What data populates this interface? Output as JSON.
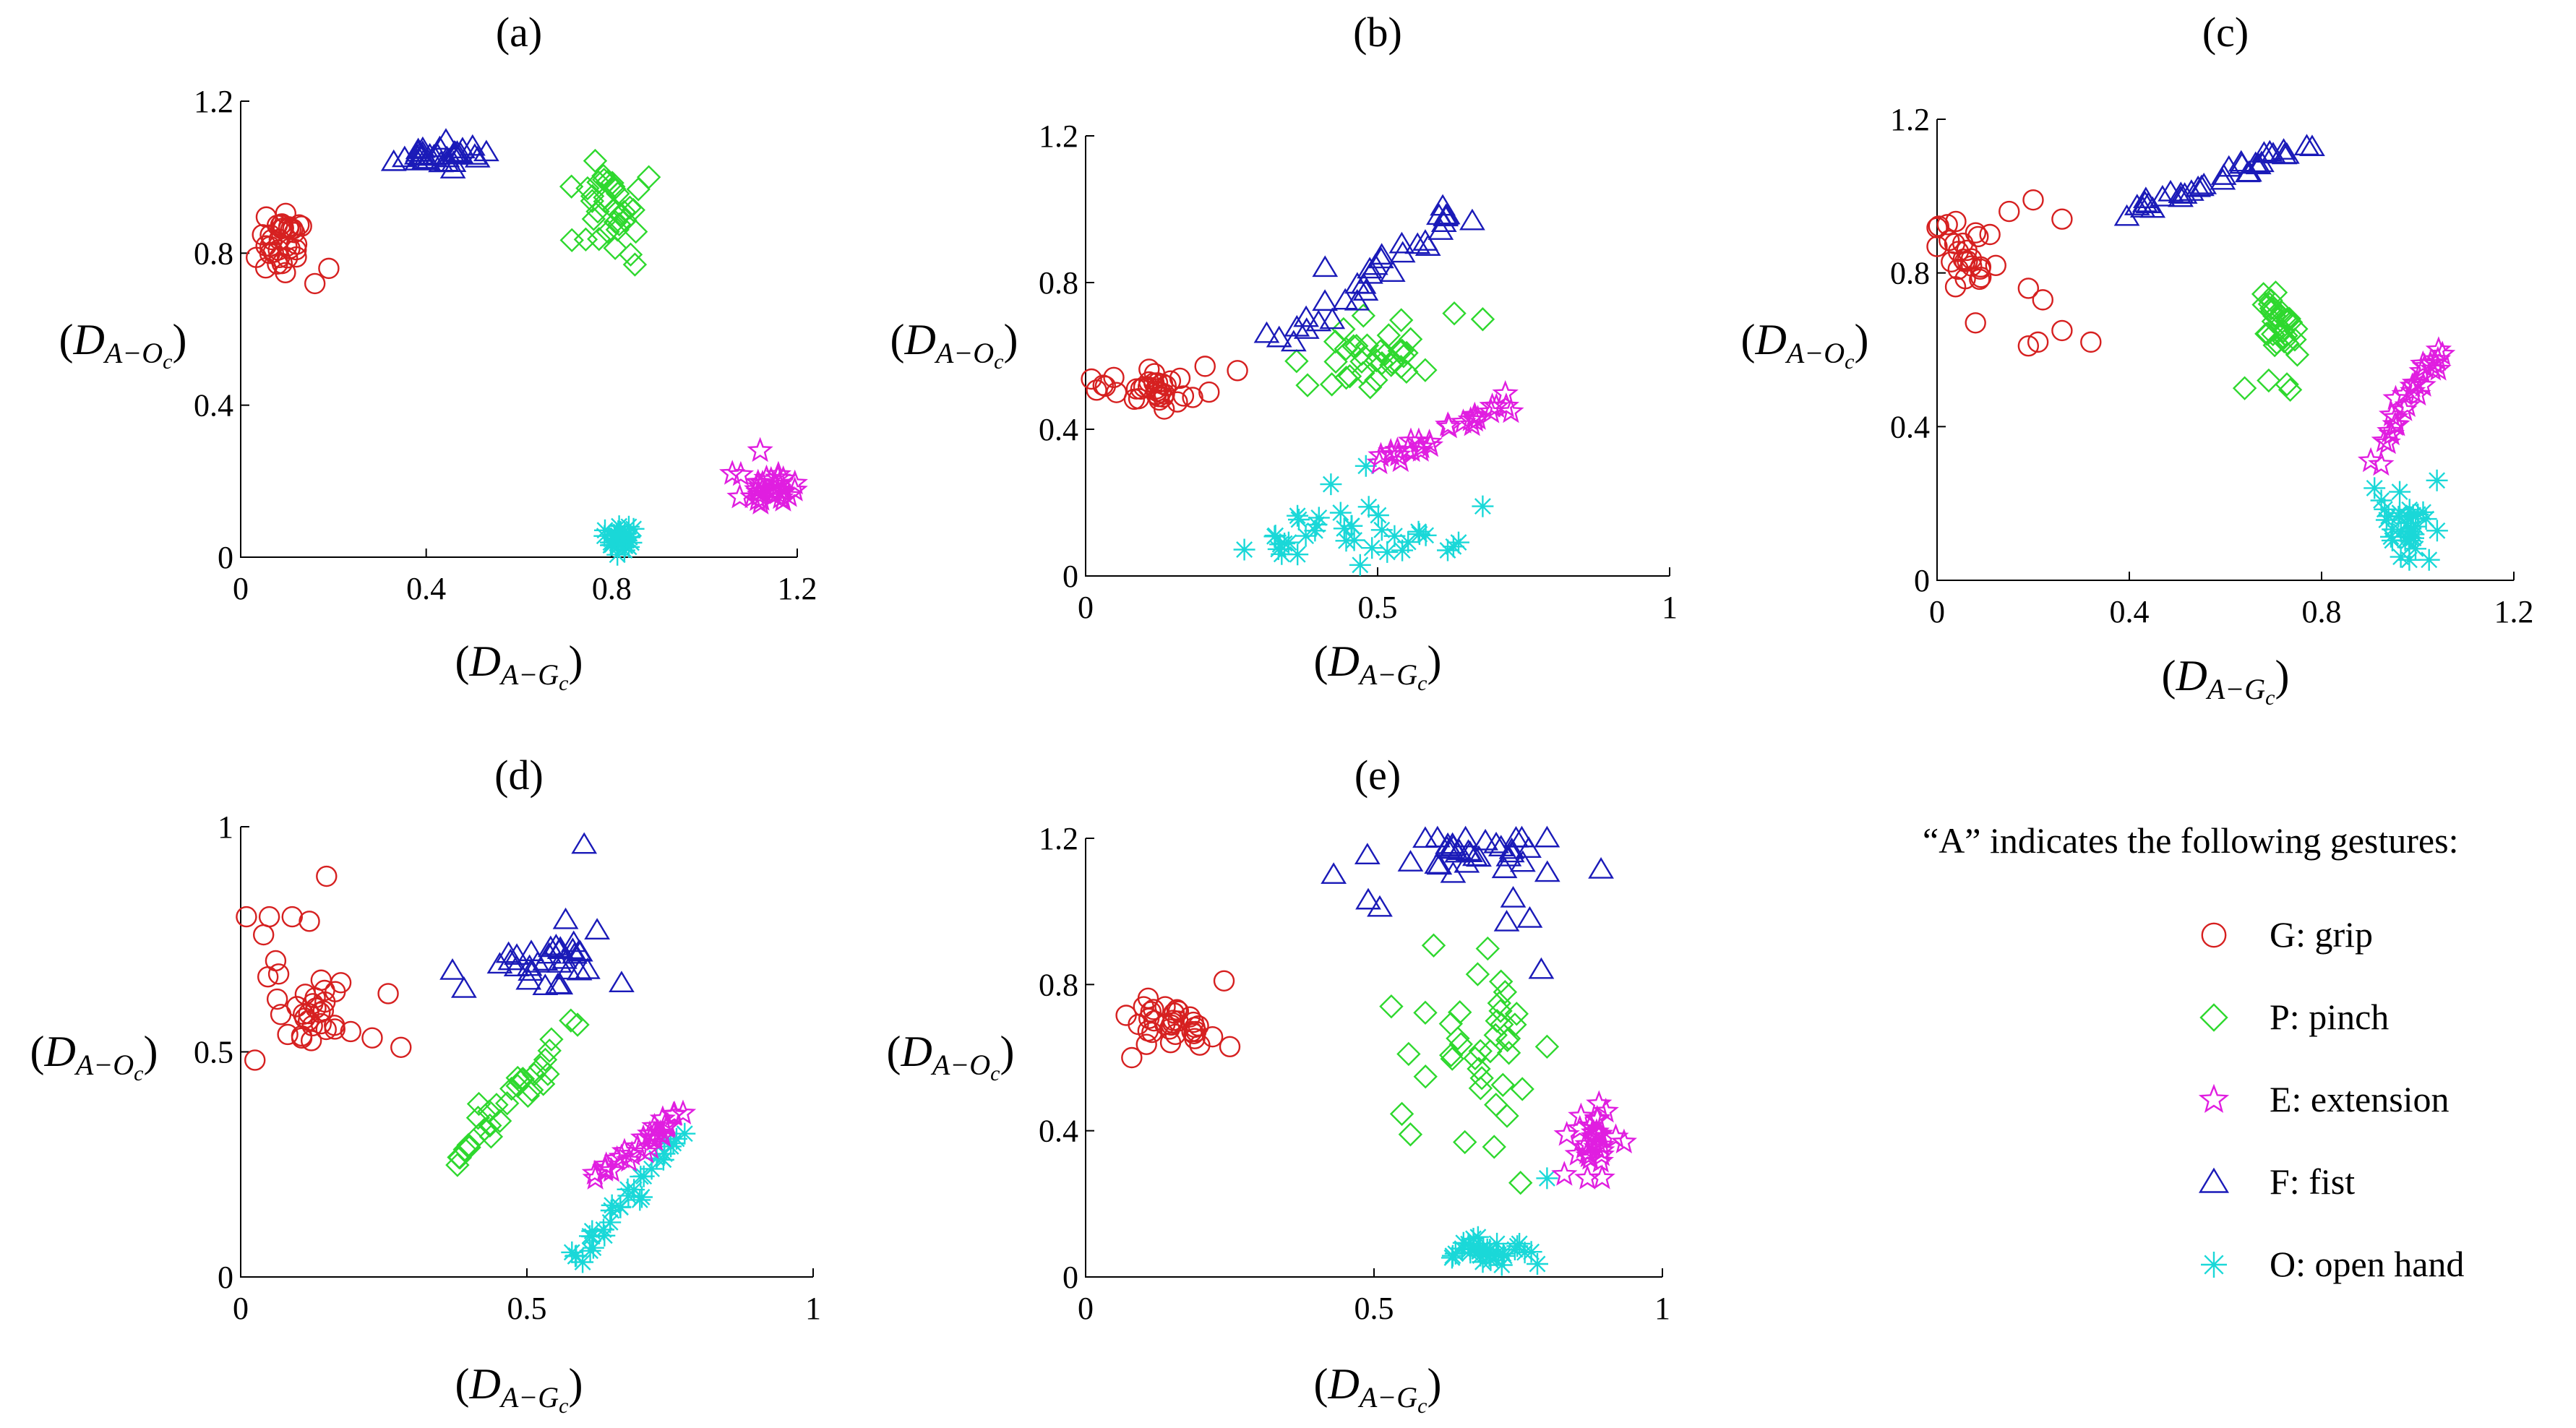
{
  "figure": {
    "legend": {
      "title": "“A” indicates the following gestures:",
      "entries": [
        {
          "key": "G",
          "label": "G: grip",
          "marker": "circle",
          "color": "#d62020"
        },
        {
          "key": "P",
          "label": "P: pinch",
          "marker": "diamond",
          "color": "#2ed82e"
        },
        {
          "key": "E",
          "label": "E: extension",
          "marker": "star",
          "color": "#e01ee0"
        },
        {
          "key": "F",
          "label": "F: fist",
          "marker": "triangle",
          "color": "#1a1ab8"
        },
        {
          "key": "O",
          "label": "O: open hand",
          "marker": "asterisk",
          "color": "#1ad8d8"
        }
      ]
    },
    "axis_text": {
      "open": "(",
      "close": ")",
      "D": "D",
      "sub_y": "A−O",
      "sub_x": "A−G",
      "subsub": "c"
    }
  },
  "chart_data": [
    {
      "type": "scatter",
      "title": "(a)",
      "xlim": [
        0,
        1.2
      ],
      "ylim": [
        0,
        1.2
      ],
      "xticks": [
        0,
        0.4,
        0.8,
        1.2
      ],
      "xtick_labels": [
        "0",
        "0.4",
        "0.8",
        "1.2"
      ],
      "yticks": [
        0,
        0.4,
        0.8,
        1.2
      ],
      "ytick_labels": [
        "0",
        "0.4",
        "0.8",
        "1.2"
      ],
      "series": {
        "G": {
          "cx": 0.09,
          "cy": 0.83,
          "sx": 0.03,
          "sy": 0.035,
          "n": 34,
          "extra": [
            [
              0.16,
              0.72
            ],
            [
              0.19,
              0.76
            ],
            [
              0.12,
              0.79
            ]
          ]
        },
        "P": {
          "cx": 0.78,
          "cy": 0.93,
          "sx": 0.045,
          "sy": 0.06,
          "n": 34,
          "extra": [
            [
              0.88,
              1.0
            ],
            [
              0.85,
              0.77
            ]
          ]
        },
        "E": {
          "cx": 1.14,
          "cy": 0.18,
          "sx": 0.035,
          "sy": 0.03,
          "n": 30,
          "extra": [
            [
              1.12,
              0.28
            ],
            [
              1.06,
              0.22
            ]
          ]
        },
        "F": {
          "cx": 0.42,
          "cy": 1.06,
          "sx": 0.045,
          "sy": 0.014,
          "n": 30,
          "extra": [
            [
              0.33,
              1.04
            ],
            [
              0.5,
              1.08
            ]
          ]
        },
        "O": {
          "cx": 0.82,
          "cy": 0.05,
          "sx": 0.018,
          "sy": 0.02,
          "n": 30,
          "extra": []
        }
      }
    },
    {
      "type": "scatter",
      "title": "(b)",
      "xlim": [
        0,
        1
      ],
      "ylim": [
        0,
        1.2
      ],
      "xticks": [
        0,
        0.5,
        1
      ],
      "xtick_labels": [
        "0",
        "0.5",
        "1"
      ],
      "yticks": [
        0,
        0.4,
        0.8,
        1.2
      ],
      "ytick_labels": [
        "0",
        "0.4",
        "0.8",
        "1.2"
      ],
      "series": {
        "G": {
          "cx": 0.12,
          "cy": 0.52,
          "sx": 0.045,
          "sy": 0.025,
          "n": 34,
          "extra": [
            [
              0.26,
              0.56
            ],
            [
              0.03,
              0.52
            ]
          ]
        },
        "P": {
          "cx": 0.5,
          "cy": 0.6,
          "sx": 0.055,
          "sy": 0.045,
          "n": 34,
          "extra": [
            [
              0.68,
              0.7
            ],
            [
              0.38,
              0.52
            ]
          ]
        },
        "E": {
          "cx": 0.62,
          "cy": 0.39,
          "sx": 0.06,
          "sy": 0.04,
          "n": 30,
          "line": [
            0.51,
            0.31,
            0.73,
            0.48
          ]
        },
        "F": {
          "cx": 0.53,
          "cy": 0.84,
          "sx": 0.06,
          "sy": 0.08,
          "n": 32,
          "line": [
            0.35,
            0.64,
            0.68,
            1.05
          ],
          "extra": [
            [
              0.31,
              0.66
            ],
            [
              0.41,
              0.84
            ]
          ]
        },
        "O": {
          "cx": 0.45,
          "cy": 0.1,
          "sx": 0.09,
          "sy": 0.035,
          "n": 34,
          "extra": [
            [
              0.48,
              0.3
            ],
            [
              0.42,
              0.25
            ],
            [
              0.68,
              0.19
            ],
            [
              0.47,
              0.03
            ],
            [
              0.62,
              0.07
            ]
          ]
        }
      }
    },
    {
      "type": "scatter",
      "title": "(c)",
      "xlim": [
        0,
        1.2
      ],
      "ylim": [
        0,
        1.2
      ],
      "xticks": [
        0,
        0.4,
        0.8,
        1.2
      ],
      "xtick_labels": [
        "0",
        "0.4",
        "0.8",
        "1.2"
      ],
      "yticks": [
        0,
        0.4,
        0.8,
        1.2
      ],
      "ytick_labels": [
        "0",
        "0.4",
        "0.8",
        "1.2"
      ],
      "series": {
        "G": {
          "cx": 0.06,
          "cy": 0.84,
          "sx": 0.035,
          "sy": 0.04,
          "n": 26,
          "extra": [
            [
              0.2,
              0.99
            ],
            [
              0.15,
              0.96
            ],
            [
              0.19,
              0.76
            ],
            [
              0.22,
              0.73
            ],
            [
              0.26,
              0.65
            ],
            [
              0.32,
              0.62
            ],
            [
              0.26,
              0.94
            ],
            [
              0.19,
              0.61
            ],
            [
              0.21,
              0.62
            ],
            [
              0.08,
              0.67
            ],
            [
              0.11,
              0.9
            ]
          ]
        },
        "P": {
          "cx": 0.71,
          "cy": 0.66,
          "sx": 0.02,
          "sy": 0.06,
          "n": 32,
          "extra": [
            [
              0.64,
              0.5
            ],
            [
              0.69,
              0.52
            ]
          ]
        },
        "E": {
          "cx": 0.97,
          "cy": 0.46,
          "sx": 0.03,
          "sy": 0.07,
          "n": 30,
          "line": [
            0.9,
            0.3,
            1.05,
            0.61
          ]
        },
        "F": {
          "cx": 0.6,
          "cy": 1.08,
          "sx": 0.07,
          "sy": 0.035,
          "n": 34,
          "line": [
            0.41,
            0.96,
            0.78,
            1.14
          ]
        },
        "O": {
          "cx": 0.97,
          "cy": 0.13,
          "sx": 0.03,
          "sy": 0.06,
          "n": 32,
          "extra": [
            [
              0.91,
              0.24
            ],
            [
              1.04,
              0.26
            ]
          ]
        }
      }
    },
    {
      "type": "scatter",
      "title": "(d)",
      "xlim": [
        0,
        1
      ],
      "ylim": [
        0,
        1
      ],
      "xticks": [
        0,
        0.5,
        1
      ],
      "xtick_labels": [
        "0",
        "0.5",
        "1"
      ],
      "yticks": [
        0,
        0.5,
        1
      ],
      "ytick_labels": [
        "0",
        "0.5",
        "1"
      ],
      "series": {
        "G": {
          "cx": 0.12,
          "cy": 0.6,
          "sx": 0.06,
          "sy": 0.06,
          "n": 34,
          "extra": [
            [
              0.01,
              0.8
            ],
            [
              0.05,
              0.8
            ],
            [
              0.09,
              0.8
            ],
            [
              0.15,
              0.89
            ],
            [
              0.28,
              0.51
            ],
            [
              0.12,
              0.79
            ],
            [
              0.04,
              0.76
            ]
          ]
        },
        "P": {
          "cx": 0.44,
          "cy": 0.39,
          "sx": 0.05,
          "sy": 0.07,
          "n": 34,
          "line": [
            0.37,
            0.25,
            0.58,
            0.57
          ]
        },
        "E": {
          "cx": 0.7,
          "cy": 0.3,
          "sx": 0.04,
          "sy": 0.03,
          "n": 30,
          "line": [
            0.62,
            0.22,
            0.78,
            0.37
          ]
        },
        "F": {
          "cx": 0.55,
          "cy": 0.71,
          "sx": 0.04,
          "sy": 0.035,
          "n": 32,
          "extra": [
            [
              0.6,
              0.96
            ],
            [
              0.37,
              0.68
            ],
            [
              0.39,
              0.64
            ]
          ]
        },
        "O": {
          "cx": 0.61,
          "cy": 0.13,
          "sx": 0.025,
          "sy": 0.05,
          "n": 32,
          "line": [
            0.58,
            0.03,
            0.78,
            0.33
          ]
        }
      }
    },
    {
      "type": "scatter",
      "title": "(e)",
      "xlim": [
        0,
        1
      ],
      "ylim": [
        0,
        1.2
      ],
      "xticks": [
        0,
        0.5,
        1
      ],
      "xtick_labels": [
        "0",
        "0.5",
        "1"
      ],
      "yticks": [
        0,
        0.4,
        0.8,
        1.2
      ],
      "ytick_labels": [
        "0",
        "0.4",
        "0.8",
        "1.2"
      ],
      "series": {
        "G": {
          "cx": 0.14,
          "cy": 0.69,
          "sx": 0.05,
          "sy": 0.035,
          "n": 34,
          "extra": [
            [
              0.24,
              0.81
            ],
            [
              0.25,
              0.63
            ],
            [
              0.08,
              0.6
            ]
          ]
        },
        "P": {
          "cx": 0.68,
          "cy": 0.65,
          "sx": 0.06,
          "sy": 0.16,
          "n": 38,
          "extra": [
            [
              0.53,
              0.74
            ],
            [
              0.56,
              0.61
            ],
            [
              0.8,
              0.63
            ]
          ]
        },
        "E": {
          "cx": 0.88,
          "cy": 0.39,
          "sx": 0.02,
          "sy": 0.04,
          "n": 30,
          "extra": [
            [
              0.83,
              0.28
            ],
            [
              0.87,
              0.27
            ]
          ]
        },
        "F": {
          "cx": 0.67,
          "cy": 1.15,
          "sx": 0.07,
          "sy": 0.04,
          "n": 34,
          "extra": [
            [
              0.43,
              1.1
            ],
            [
              0.49,
              1.03
            ],
            [
              0.51,
              1.01
            ],
            [
              0.79,
              0.84
            ],
            [
              0.77,
              0.98
            ],
            [
              0.73,
              0.97
            ],
            [
              0.8,
              1.2
            ]
          ]
        },
        "O": {
          "cx": 0.69,
          "cy": 0.07,
          "sx": 0.035,
          "sy": 0.02,
          "n": 34,
          "extra": [
            [
              0.8,
              0.27
            ]
          ]
        }
      }
    }
  ]
}
